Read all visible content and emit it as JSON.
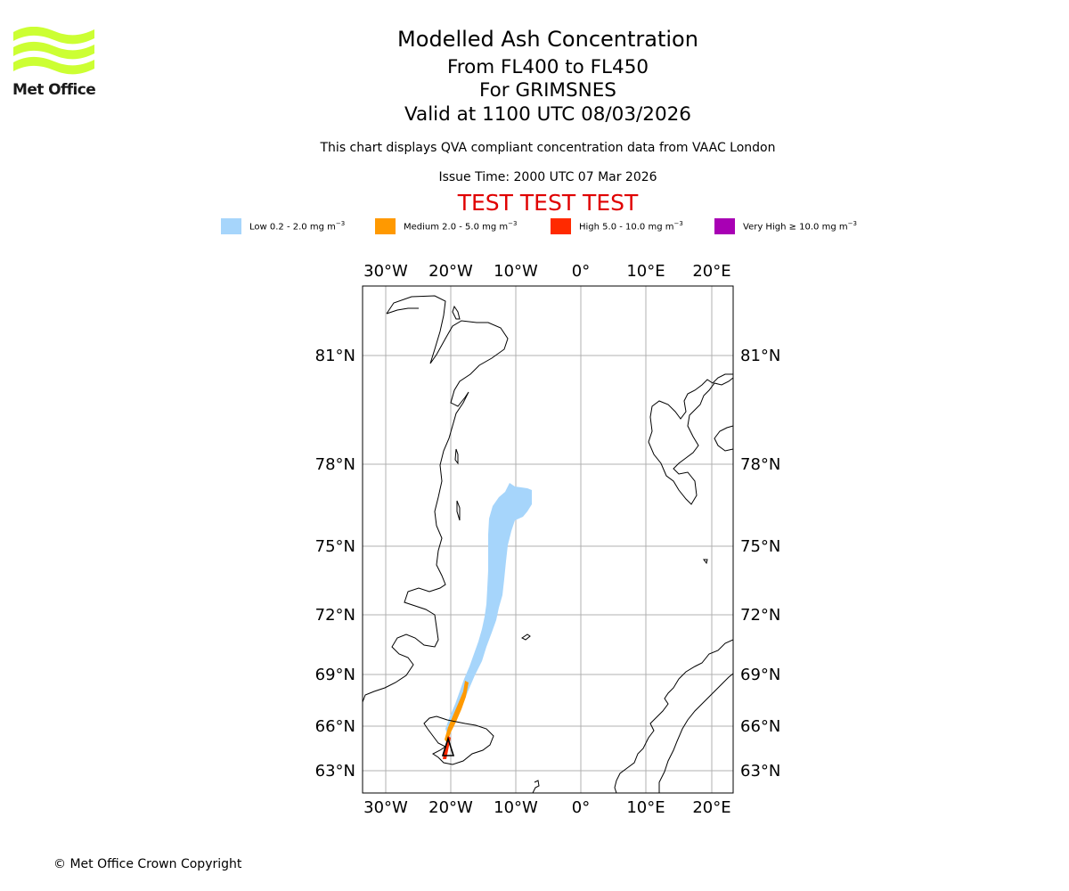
{
  "header": {
    "logo_text": "Met Office",
    "title": "Modelled Ash Concentration",
    "levels": "From FL400 to FL450",
    "volcano": "For GRIMSNES",
    "valid": "Valid at 1100 UTC 08/03/2026",
    "description": "This chart displays QVA compliant concentration data from VAAC London",
    "issue_time": "Issue Time: 2000 UTC 07 Mar 2026",
    "test_banner": "TEST TEST TEST"
  },
  "legend": [
    {
      "label": "Low 0.2 - 2.0 mg m",
      "color": "#a6d5fb"
    },
    {
      "label": "Medium 2.0 - 5.0 mg m",
      "color": "#ff9900"
    },
    {
      "label": "High 5.0 - 10.0 mg m",
      "color": "#ff2a00"
    },
    {
      "label": "Very High ≥ 10.0 mg m",
      "color": "#a800b4"
    }
  ],
  "legend_unit_exponent": "−3",
  "map": {
    "lon_labels": [
      "30°W",
      "20°W",
      "10°W",
      "0°",
      "10°E",
      "20°E"
    ],
    "lat_labels": [
      "81°N",
      "78°N",
      "75°N",
      "72°N",
      "69°N",
      "66°N",
      "63°N"
    ]
  },
  "colors": {
    "brand_green": "#ccff33",
    "test_red": "#e00000",
    "grid": "#b0b0b0"
  },
  "footer": {
    "copyright": "© Met Office Crown Copyright"
  }
}
